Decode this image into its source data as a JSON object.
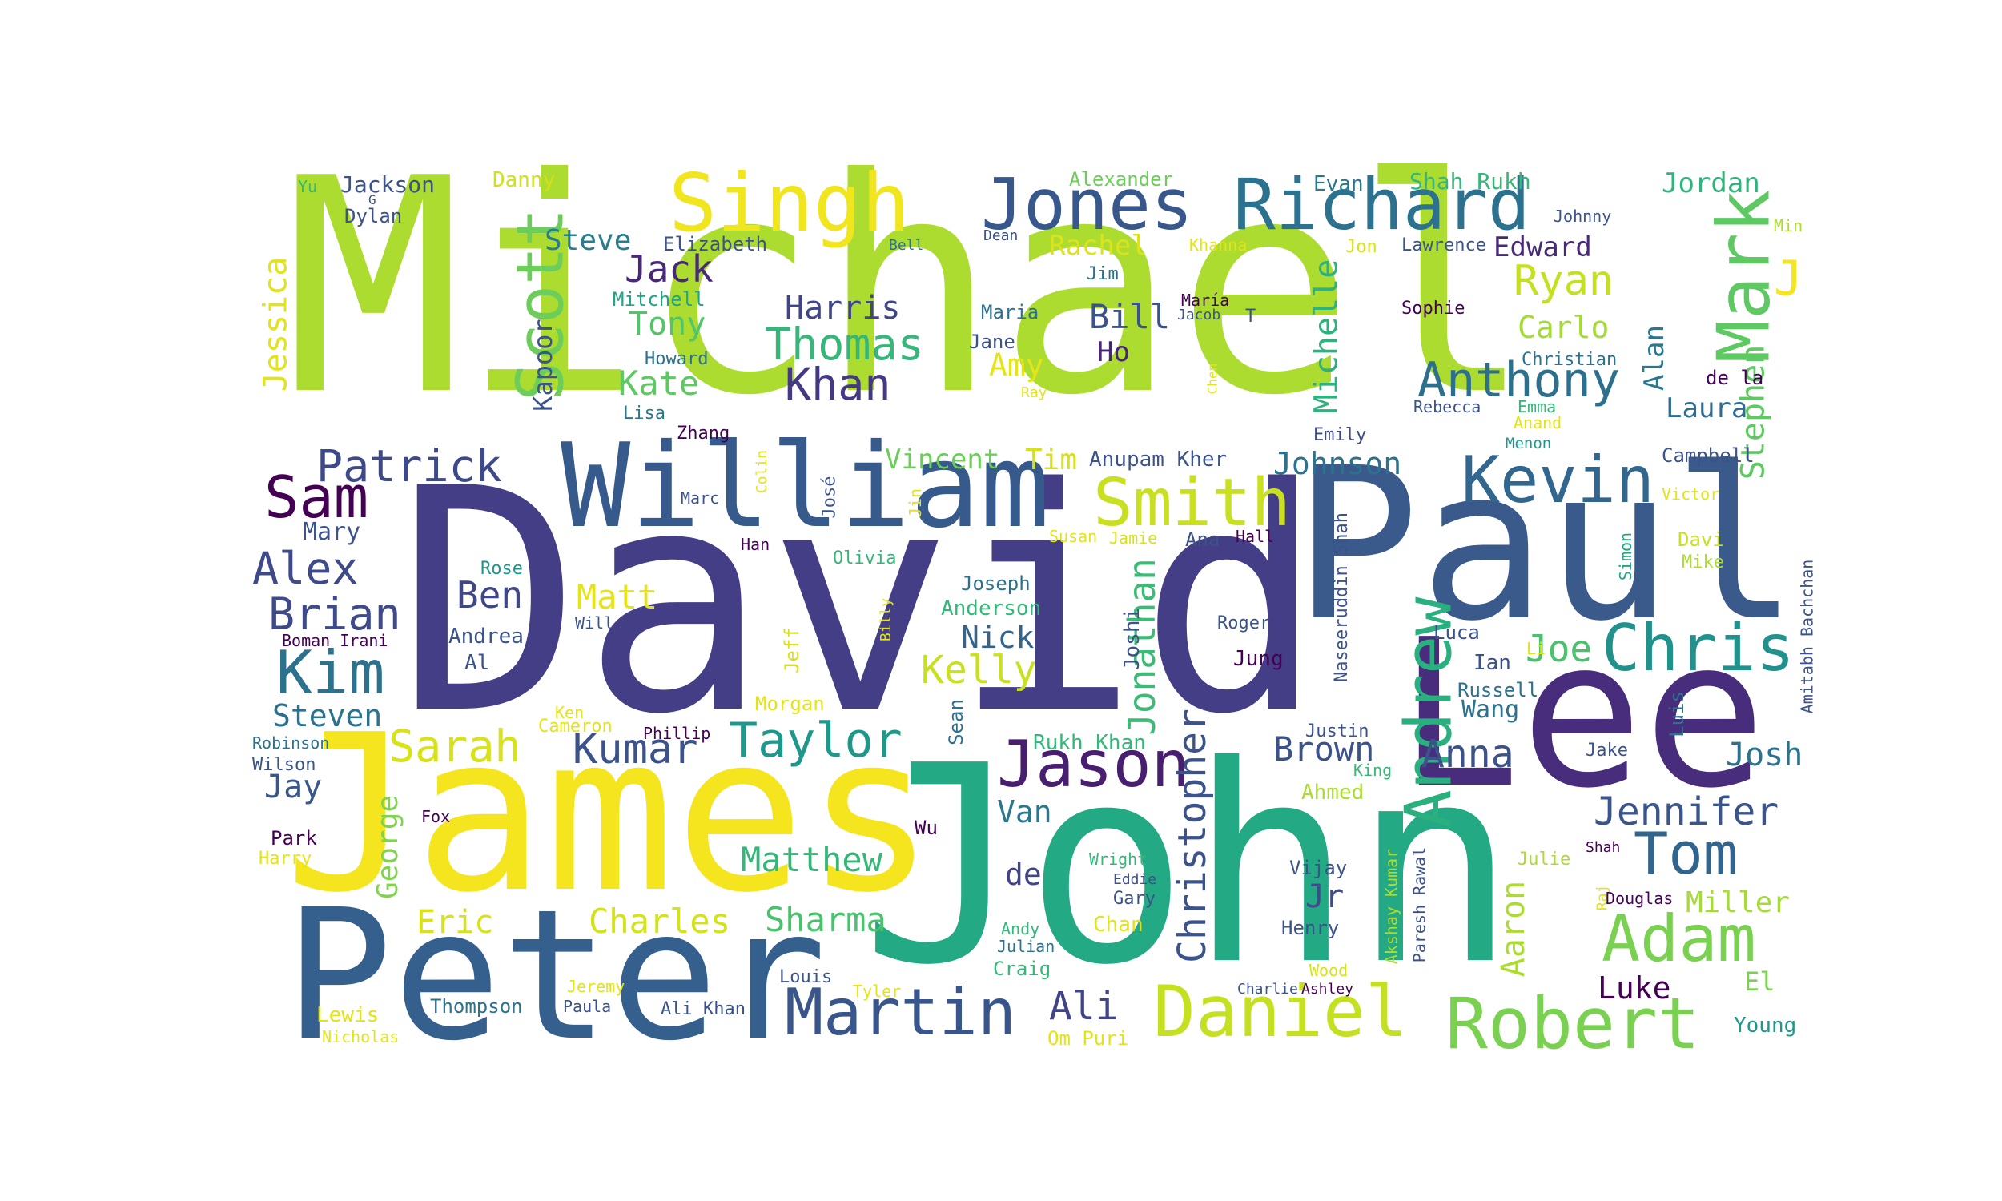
{
  "words": [
    {
      "text": "Michael",
      "color": "#addc30"
    },
    {
      "text": "David",
      "color": "#433e85"
    },
    {
      "text": "John",
      "color": "#23a983"
    },
    {
      "text": "James",
      "color": "#f5e51f"
    },
    {
      "text": "Paul",
      "color": "#3a5a8c"
    },
    {
      "text": "Lee",
      "color": "#472d7b"
    },
    {
      "text": "Peter",
      "color": "#355f8d"
    },
    {
      "text": "William",
      "color": "#375a8c"
    },
    {
      "text": "Singh",
      "color": "#f1e51d"
    },
    {
      "text": "Jones",
      "color": "#38588c"
    },
    {
      "text": "Richard",
      "color": "#2c728e"
    },
    {
      "text": "Mark",
      "color": "#5ec962"
    },
    {
      "text": "Scott",
      "color": "#6ccd5a"
    },
    {
      "text": "Smith",
      "color": "#c8e020"
    },
    {
      "text": "Kevin",
      "color": "#31668e"
    },
    {
      "text": "Andrew",
      "color": "#2ab07f"
    },
    {
      "text": "Chris",
      "color": "#21918c"
    },
    {
      "text": "Daniel",
      "color": "#c5e021"
    },
    {
      "text": "Robert",
      "color": "#7ad151"
    },
    {
      "text": "Martin",
      "color": "#39568c"
    },
    {
      "text": "Jason",
      "color": "#481f70"
    },
    {
      "text": "Tom",
      "color": "#32658e"
    },
    {
      "text": "Adam",
      "color": "#7ad151"
    },
    {
      "text": "Kim",
      "color": "#2c728e"
    },
    {
      "text": "Sam",
      "color": "#440154"
    },
    {
      "text": "Taylor",
      "color": "#1f988b"
    },
    {
      "text": "Sarah",
      "color": "#d8e219"
    },
    {
      "text": "Anthony",
      "color": "#2d708e"
    },
    {
      "text": "Christopher",
      "color": "#3b528b"
    },
    {
      "text": "Jonathan",
      "color": "#3bbb75"
    },
    {
      "text": "Thomas",
      "color": "#35b779"
    },
    {
      "text": "Khan",
      "color": "#443983"
    },
    {
      "text": "Patrick",
      "color": "#3e4989"
    },
    {
      "text": "Ryan",
      "color": "#c5e021"
    },
    {
      "text": "Jennifer",
      "color": "#3a548c"
    },
    {
      "text": "Brian",
      "color": "#3e4a89"
    },
    {
      "text": "Alex",
      "color": "#3e4a89"
    },
    {
      "text": "Kumar",
      "color": "#3b528b"
    },
    {
      "text": "Matthew",
      "color": "#35b779"
    },
    {
      "text": "Charles",
      "color": "#d2e21b"
    },
    {
      "text": "Sharma",
      "color": "#4ac16d"
    },
    {
      "text": "Brown",
      "color": "#3b528b"
    },
    {
      "text": "Anna",
      "color": "#3b528b"
    },
    {
      "text": "Josh",
      "color": "#2c728e"
    },
    {
      "text": "Kelly",
      "color": "#c8e020"
    },
    {
      "text": "Ali",
      "color": "#414487"
    },
    {
      "text": "Jack",
      "color": "#482878"
    },
    {
      "text": "Harris",
      "color": "#404688"
    },
    {
      "text": "Bill",
      "color": "#3b528b"
    },
    {
      "text": "Michelle",
      "color": "#2db27d"
    },
    {
      "text": "Stephen",
      "color": "#5ec962"
    },
    {
      "text": "Jessica",
      "color": "#e2e418"
    },
    {
      "text": "Laura",
      "color": "#2f6c8e"
    },
    {
      "text": "Alan",
      "color": "#2a788e"
    },
    {
      "text": "Johnson",
      "color": "#2c728e"
    },
    {
      "text": "Steve",
      "color": "#287d8e"
    },
    {
      "text": "Kate",
      "color": "#5ec962"
    },
    {
      "text": "Tony",
      "color": "#52c569"
    },
    {
      "text": "Edward",
      "color": "#482878"
    },
    {
      "text": "Carlo",
      "color": "#a5db36"
    },
    {
      "text": "Matt",
      "color": "#e5e419"
    },
    {
      "text": "Ben",
      "color": "#3f4788"
    },
    {
      "text": "Steven",
      "color": "#2c728e"
    },
    {
      "text": "Jay",
      "color": "#38588c"
    },
    {
      "text": "Joe",
      "color": "#4ac16d"
    },
    {
      "text": "Nick",
      "color": "#32648e"
    },
    {
      "text": "Van",
      "color": "#2a788e"
    },
    {
      "text": "Eric",
      "color": "#d8e219"
    },
    {
      "text": "Luke",
      "color": "#440154"
    },
    {
      "text": "Miller",
      "color": "#a5db36"
    },
    {
      "text": "George",
      "color": "#7fd34e"
    },
    {
      "text": "Jr",
      "color": "#3e4a89"
    },
    {
      "text": "Aaron",
      "color": "#addc30"
    },
    {
      "text": "Amy",
      "color": "#e5e419"
    },
    {
      "text": "Rachel",
      "color": "#dde318"
    },
    {
      "text": "Mary",
      "color": "#3b528b"
    },
    {
      "text": "Tim",
      "color": "#d5e21a"
    },
    {
      "text": "Vincent",
      "color": "#6ccd5a"
    },
    {
      "text": "Kapoor",
      "color": "#3b528b"
    },
    {
      "text": "Ho",
      "color": "#482677"
    },
    {
      "text": "de",
      "color": "#414487"
    },
    {
      "text": "Wang",
      "color": "#2c728e"
    },
    {
      "text": "Jordan",
      "color": "#2fb47c"
    },
    {
      "text": "Jackson",
      "color": "#3b528b"
    },
    {
      "text": "Danny",
      "color": "#d0e11c"
    },
    {
      "text": "Alexander",
      "color": "#6ccd5a"
    },
    {
      "text": "Evan",
      "color": "#2a788e"
    },
    {
      "text": "Shah Rukh",
      "color": "#35b779"
    },
    {
      "text": "Dylan",
      "color": "#3b528b"
    },
    {
      "text": "Elizabeth",
      "color": "#3b528b"
    },
    {
      "text": "Mitchell",
      "color": "#20a386"
    },
    {
      "text": "Howard",
      "color": "#2c728e"
    },
    {
      "text": "Lisa",
      "color": "#2a788e"
    },
    {
      "text": "Zhang",
      "color": "#440154"
    },
    {
      "text": "Maria",
      "color": "#2c728e"
    },
    {
      "text": "Jane",
      "color": "#3b528b"
    },
    {
      "text": "Anupam Kher",
      "color": "#3b528b"
    },
    {
      "text": "Jim",
      "color": "#2c728e"
    },
    {
      "text": "Jon",
      "color": "#d8e219"
    },
    {
      "text": "Lawrence",
      "color": "#3b528b"
    },
    {
      "text": "Khanna",
      "color": "#e2e418"
    },
    {
      "text": "Christian",
      "color": "#2c728e"
    },
    {
      "text": "Sophie",
      "color": "#440154"
    },
    {
      "text": "Rebecca",
      "color": "#3b528b"
    },
    {
      "text": "Emma",
      "color": "#35b779"
    },
    {
      "text": "Anand",
      "color": "#e2e418"
    },
    {
      "text": "Menon",
      "color": "#1f988b"
    },
    {
      "text": "Emily",
      "color": "#3e4a89"
    },
    {
      "text": "Campbell",
      "color": "#3b528b"
    },
    {
      "text": "Victor",
      "color": "#e2e418"
    },
    {
      "text": "Davi",
      "color": "#c8e020"
    },
    {
      "text": "Mike",
      "color": "#addc30"
    },
    {
      "text": "Simon",
      "color": "#20a386"
    },
    {
      "text": "Amitabh Bachchan",
      "color": "#3b528b"
    },
    {
      "text": "Ana",
      "color": "#3b528b"
    },
    {
      "text": "Hall",
      "color": "#440154"
    },
    {
      "text": "Susan",
      "color": "#e2e418"
    },
    {
      "text": "Jamie",
      "color": "#d8e219"
    },
    {
      "text": "Rose",
      "color": "#1f988b"
    },
    {
      "text": "Olivia",
      "color": "#35b779"
    },
    {
      "text": "Han",
      "color": "#440154"
    },
    {
      "text": "Marc",
      "color": "#3b528b"
    },
    {
      "text": "José",
      "color": "#3b528b"
    },
    {
      "text": "Jin",
      "color": "#e2e418"
    },
    {
      "text": "Colin",
      "color": "#e2e418"
    },
    {
      "text": "Joseph",
      "color": "#2c728e"
    },
    {
      "text": "Anderson",
      "color": "#35b779"
    },
    {
      "text": "Billy",
      "color": "#e2e418"
    },
    {
      "text": "Jeff",
      "color": "#d8e219"
    },
    {
      "text": "Joshi",
      "color": "#3b528b"
    },
    {
      "text": "Roger",
      "color": "#3b528b"
    },
    {
      "text": "Jung",
      "color": "#440154"
    },
    {
      "text": "Naseeruddin Shah",
      "color": "#3b528b"
    },
    {
      "text": "Luca",
      "color": "#3b528b"
    },
    {
      "text": "Ian",
      "color": "#3b528b"
    },
    {
      "text": "Li",
      "color": "#e2e418"
    },
    {
      "text": "Russell",
      "color": "#2c728e"
    },
    {
      "text": "Luis",
      "color": "#2c728e"
    },
    {
      "text": "Justin",
      "color": "#3b528b"
    },
    {
      "text": "Jake",
      "color": "#3b528b"
    },
    {
      "text": "King",
      "color": "#35b779"
    },
    {
      "text": "Ahmed",
      "color": "#addc30"
    },
    {
      "text": "Andrea",
      "color": "#3b528b"
    },
    {
      "text": "Al",
      "color": "#3b528b"
    },
    {
      "text": "Boman Irani",
      "color": "#440154"
    },
    {
      "text": "Will",
      "color": "#3b528b"
    },
    {
      "text": "Ken",
      "color": "#e2e418"
    },
    {
      "text": "Cameron",
      "color": "#e2e418"
    },
    {
      "text": "Phillip",
      "color": "#440154"
    },
    {
      "text": "Morgan",
      "color": "#e2e418"
    },
    {
      "text": "Sean",
      "color": "#2c728e"
    },
    {
      "text": "Rukh Khan",
      "color": "#35b779"
    },
    {
      "text": "Robinson",
      "color": "#2c728e"
    },
    {
      "text": "Wilson",
      "color": "#3b528b"
    },
    {
      "text": "Park",
      "color": "#440154"
    },
    {
      "text": "Harry",
      "color": "#e2e418"
    },
    {
      "text": "Fox",
      "color": "#440154"
    },
    {
      "text": "Wu",
      "color": "#440154"
    },
    {
      "text": "Wright",
      "color": "#35b779"
    },
    {
      "text": "Eddie",
      "color": "#3b528b"
    },
    {
      "text": "Gary",
      "color": "#3b528b"
    },
    {
      "text": "Chan",
      "color": "#e2e418"
    },
    {
      "text": "Andy",
      "color": "#35b779"
    },
    {
      "text": "Julian",
      "color": "#2c728e"
    },
    {
      "text": "Craig",
      "color": "#35b779"
    },
    {
      "text": "Vijay",
      "color": "#3b528b"
    },
    {
      "text": "Henry",
      "color": "#3b528b"
    },
    {
      "text": "Wood",
      "color": "#d8e219"
    },
    {
      "text": "Charlie",
      "color": "#3b528b"
    },
    {
      "text": "Ashley",
      "color": "#440154"
    },
    {
      "text": "Akshay Kumar",
      "color": "#addc30"
    },
    {
      "text": "Paresh Rawal",
      "color": "#3b528b"
    },
    {
      "text": "Julie",
      "color": "#addc30"
    },
    {
      "text": "Shah",
      "color": "#440154"
    },
    {
      "text": "Raj",
      "color": "#e2e418"
    },
    {
      "text": "Douglas",
      "color": "#440154"
    },
    {
      "text": "El",
      "color": "#7ad151"
    },
    {
      "text": "Young",
      "color": "#1f988b"
    },
    {
      "text": "Lewis",
      "color": "#e2e418"
    },
    {
      "text": "Nicholas",
      "color": "#e2e418"
    },
    {
      "text": "Thompson",
      "color": "#2c728e"
    },
    {
      "text": "Jeremy",
      "color": "#e2e418"
    },
    {
      "text": "Paula",
      "color": "#3b528b"
    },
    {
      "text": "Ali Khan",
      "color": "#3b528b"
    },
    {
      "text": "Louis",
      "color": "#3b528b"
    },
    {
      "text": "Tyler",
      "color": "#e2e418"
    },
    {
      "text": "Om Puri",
      "color": "#e2e418"
    },
    {
      "text": "Yu",
      "color": "#35b779"
    },
    {
      "text": "G",
      "color": "#3b528b"
    },
    {
      "text": "Bell",
      "color": "#2c728e"
    },
    {
      "text": "Dean",
      "color": "#3b528b"
    },
    {
      "text": "Johnny",
      "color": "#3b528b"
    },
    {
      "text": "Min",
      "color": "#addc30"
    },
    {
      "text": "J",
      "color": "#f5e51f"
    },
    {
      "text": "Jacob",
      "color": "#3b528b"
    },
    {
      "text": "T",
      "color": "#3b528b"
    },
    {
      "text": "María",
      "color": "#440154"
    },
    {
      "text": "Ray",
      "color": "#e2e418"
    },
    {
      "text": "Chen",
      "color": "#e2e418"
    },
    {
      "text": "de la",
      "color": "#440154"
    }
  ]
}
